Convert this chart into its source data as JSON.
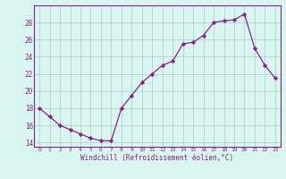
{
  "x": [
    0,
    1,
    2,
    3,
    4,
    5,
    6,
    7,
    8,
    9,
    10,
    11,
    12,
    13,
    14,
    15,
    16,
    17,
    18,
    19,
    20,
    21,
    22,
    23
  ],
  "y": [
    18,
    17,
    16,
    15.5,
    15,
    14.5,
    14.2,
    14.2,
    18,
    19.5,
    21,
    22,
    23,
    23.5,
    25.5,
    25.7,
    26.5,
    28,
    28.2,
    28.3,
    29,
    25,
    23,
    21.5
  ],
  "line_color": "#882288",
  "marker": "D",
  "marker_size": 2.2,
  "background_color": "#d8f5f0",
  "grid_color": "#aacccc",
  "xlabel": "Windchill (Refroidissement éolien,°C)",
  "ylim": [
    13.5,
    30
  ],
  "xlim": [
    -0.5,
    23.5
  ],
  "yticks": [
    14,
    16,
    18,
    20,
    22,
    24,
    26,
    28
  ],
  "xticks": [
    0,
    1,
    2,
    3,
    4,
    5,
    6,
    7,
    8,
    9,
    10,
    11,
    12,
    13,
    14,
    15,
    16,
    17,
    18,
    19,
    20,
    21,
    22,
    23
  ],
  "xtick_labels": [
    "0",
    "1",
    "2",
    "3",
    "4",
    "5",
    "6",
    "7",
    "8",
    "9",
    "10",
    "11",
    "12",
    "13",
    "14",
    "15",
    "16",
    "17",
    "18",
    "19",
    "20",
    "21",
    "22",
    "23"
  ],
  "ytick_labels": [
    "14",
    "16",
    "18",
    "20",
    "22",
    "24",
    "26",
    "28"
  ],
  "xtick_fontsize": 4.5,
  "ytick_fontsize": 5.5,
  "xlabel_fontsize": 5.5,
  "linewidth": 0.9,
  "spine_color": "#882288"
}
